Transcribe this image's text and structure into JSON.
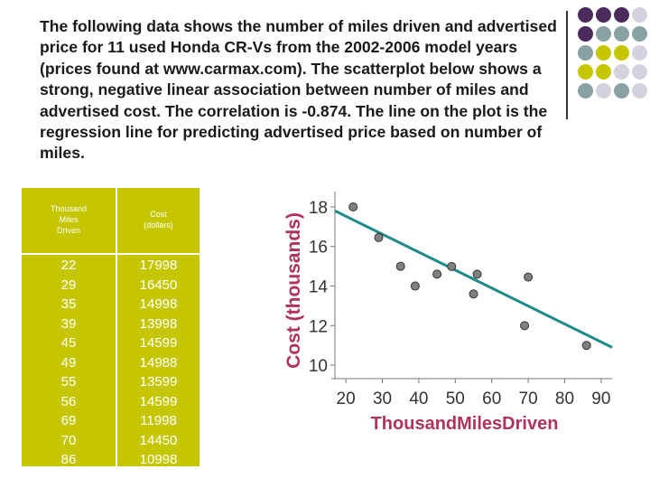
{
  "intro_text": "The following data shows the number of miles driven and advertised price for 11 used Honda CR-Vs from the 2002-2006 model years (prices found at www.carmax.com).  The scatterplot below shows a strong, negative linear association between number of miles and advertised cost.  The correlation is -0.874.  The line on the plot is the regression line for predicting advertised price based on number of miles.",
  "decor_colors": [
    "#4b2a5c",
    "#8aa1a3",
    "#c6c600",
    "#d3d3e0"
  ],
  "table": {
    "header_miles": "Thousand\nMiles\nDriven",
    "header_cost": "Cost\n(dollars)",
    "miles": [
      "22",
      "29",
      "35",
      "39",
      "45",
      "49",
      "55",
      "56",
      "69",
      "70",
      "86"
    ],
    "cost": [
      "17998",
      "16450",
      "14998",
      "13998",
      "14599",
      "14988",
      "13599",
      "14599",
      "11998",
      "14450",
      "10998"
    ],
    "background": "#c6c600"
  },
  "chart_data": {
    "type": "scatter",
    "xlabel": "ThousandMilesDriven",
    "ylabel": "Cost (thousands)",
    "xlim": [
      17,
      93
    ],
    "ylim": [
      9.5,
      18.5
    ],
    "xticks": [
      20,
      30,
      40,
      50,
      60,
      70,
      80,
      90
    ],
    "yticks": [
      10,
      12,
      14,
      16,
      18
    ],
    "x": [
      22,
      29,
      35,
      39,
      45,
      49,
      55,
      56,
      69,
      70,
      86
    ],
    "y": [
      17.998,
      16.45,
      14.998,
      13.998,
      14.599,
      14.988,
      13.599,
      14.599,
      11.998,
      14.45,
      10.998
    ],
    "regression_line": [
      [
        17,
        17.8
      ],
      [
        93,
        10.9
      ]
    ],
    "line_color": "#1e8a8a",
    "label_color": "#b0335a",
    "axis_label_color": "#b0335a"
  }
}
